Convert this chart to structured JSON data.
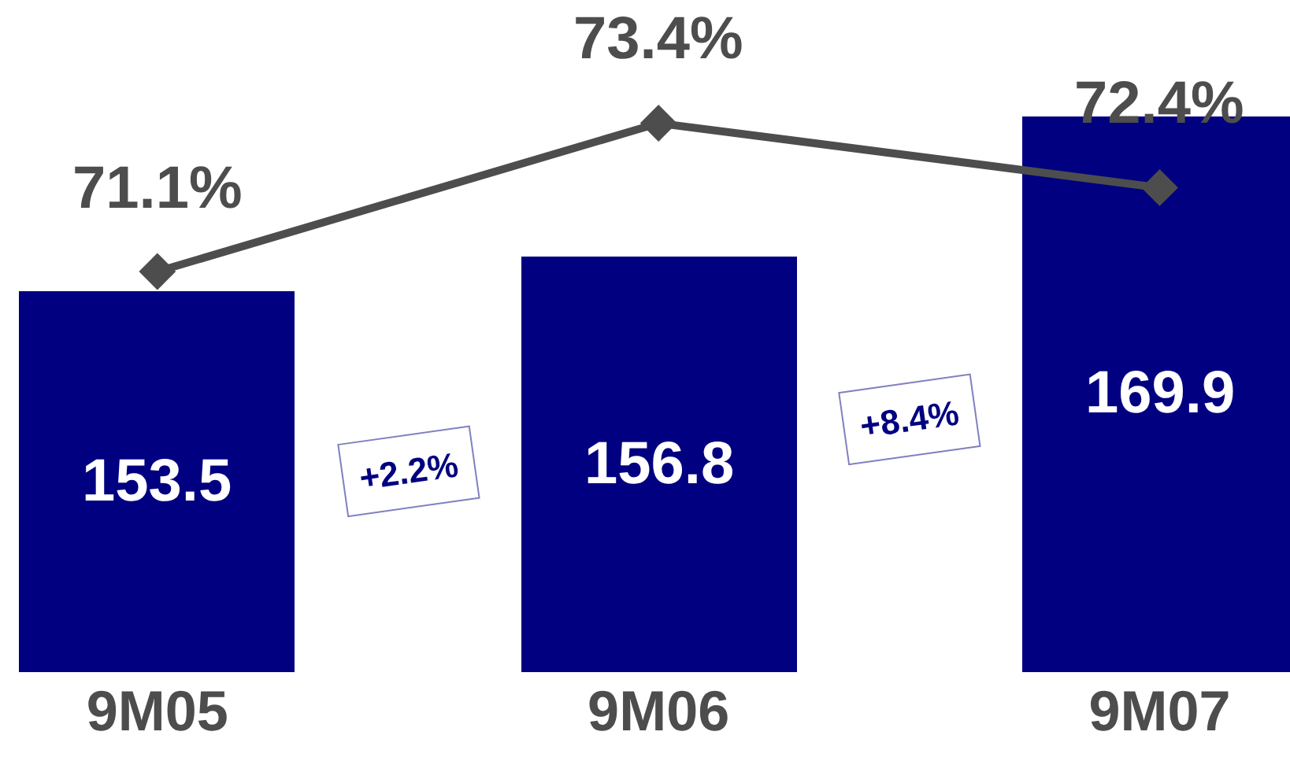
{
  "chart_data": {
    "type": "bar",
    "categories": [
      "9M05",
      "9M06",
      "9M07"
    ],
    "series": [
      {
        "color": "#000080",
        "values": [
          153.5,
          156.8,
          169.9
        ]
      },
      {
        "type": "line",
        "axis": "y2",
        "color": "#4d4d4d",
        "values": [
          71.1,
          73.4,
          72.4
        ],
        "value_labels": [
          "71.1%",
          "73.4%",
          "72.4%"
        ]
      }
    ],
    "marker": "diamond",
    "data_labels": true,
    "tick_labels": "x",
    "grid": false,
    "annotations": [
      "+2.2%",
      "+8.4%"
    ]
  }
}
